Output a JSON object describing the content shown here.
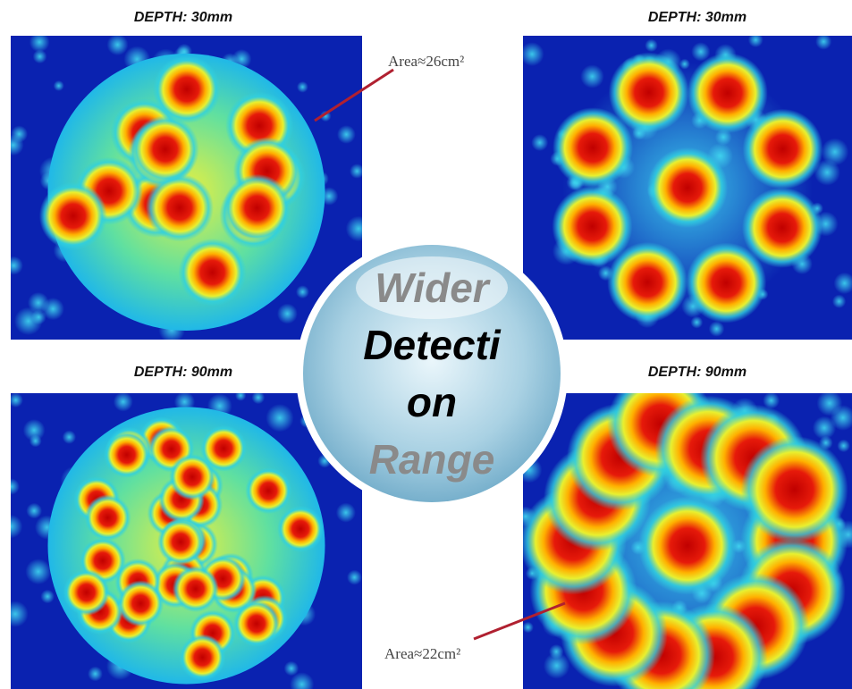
{
  "panels": [
    {
      "label": "DEPTH: 30mm"
    },
    {
      "label": "DEPTH: 30mm"
    },
    {
      "label": "DEPTH: 90mm"
    },
    {
      "label": "DEPTH: 90mm"
    }
  ],
  "annotations": [
    "Area≈26cm²",
    "Area≈22cm²"
  ],
  "badge": {
    "lines": [
      "Wider",
      "Detecti",
      "on",
      "Range"
    ]
  }
}
